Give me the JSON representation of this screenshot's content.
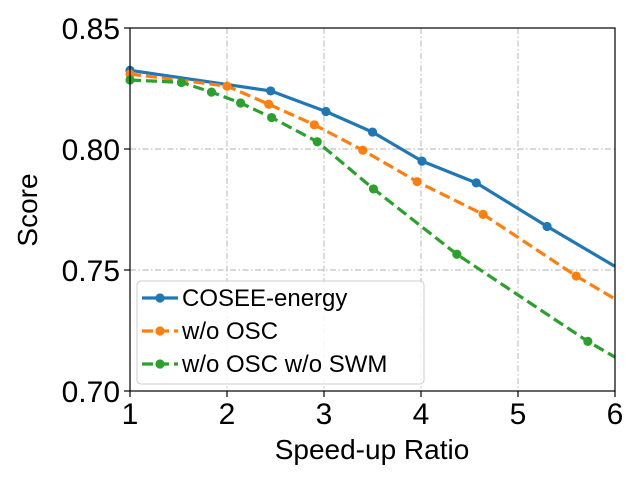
{
  "chart_data": {
    "type": "line",
    "title": "",
    "xlabel": "Speed-up Ratio",
    "ylabel": "Score",
    "xlim": [
      1,
      6
    ],
    "ylim": [
      0.7,
      0.85
    ],
    "x_ticks": [
      "1",
      "2",
      "3",
      "4",
      "5",
      "6"
    ],
    "y_ticks": [
      "0.70",
      "0.75",
      "0.80",
      "0.85"
    ],
    "grid": true,
    "legend_position": "lower-left",
    "series": [
      {
        "name": "COSEE-energy",
        "color": "#1f77b4",
        "dash": "solid",
        "x": [
          1.0,
          2.45,
          3.02,
          3.5,
          4.01,
          4.57,
          5.3,
          6.0
        ],
        "y": [
          0.8325,
          0.824,
          0.8155,
          0.807,
          0.795,
          0.786,
          0.768,
          0.7515
        ],
        "markers": [
          true,
          true,
          true,
          true,
          true,
          true,
          true,
          false
        ]
      },
      {
        "name": "w/o OSC",
        "color": "#ff7f0e",
        "dash": "dashed",
        "x": [
          1.0,
          2.0,
          2.43,
          2.9,
          3.4,
          3.96,
          4.64,
          5.6,
          6.0
        ],
        "y": [
          0.831,
          0.826,
          0.8185,
          0.81,
          0.7995,
          0.7865,
          0.773,
          0.7475,
          0.738
        ],
        "markers": [
          true,
          true,
          true,
          true,
          true,
          true,
          true,
          true,
          false
        ]
      },
      {
        "name": "w/o OSC w/o SWM",
        "color": "#2ca02c",
        "dash": "dashed",
        "x": [
          1.0,
          1.53,
          1.84,
          2.14,
          2.46,
          2.93,
          3.51,
          4.37,
          5.72,
          6.0
        ],
        "y": [
          0.8285,
          0.8275,
          0.8235,
          0.819,
          0.813,
          0.803,
          0.7835,
          0.7565,
          0.7205,
          0.714
        ],
        "markers": [
          true,
          true,
          true,
          true,
          true,
          true,
          true,
          true,
          true,
          false
        ]
      }
    ]
  }
}
